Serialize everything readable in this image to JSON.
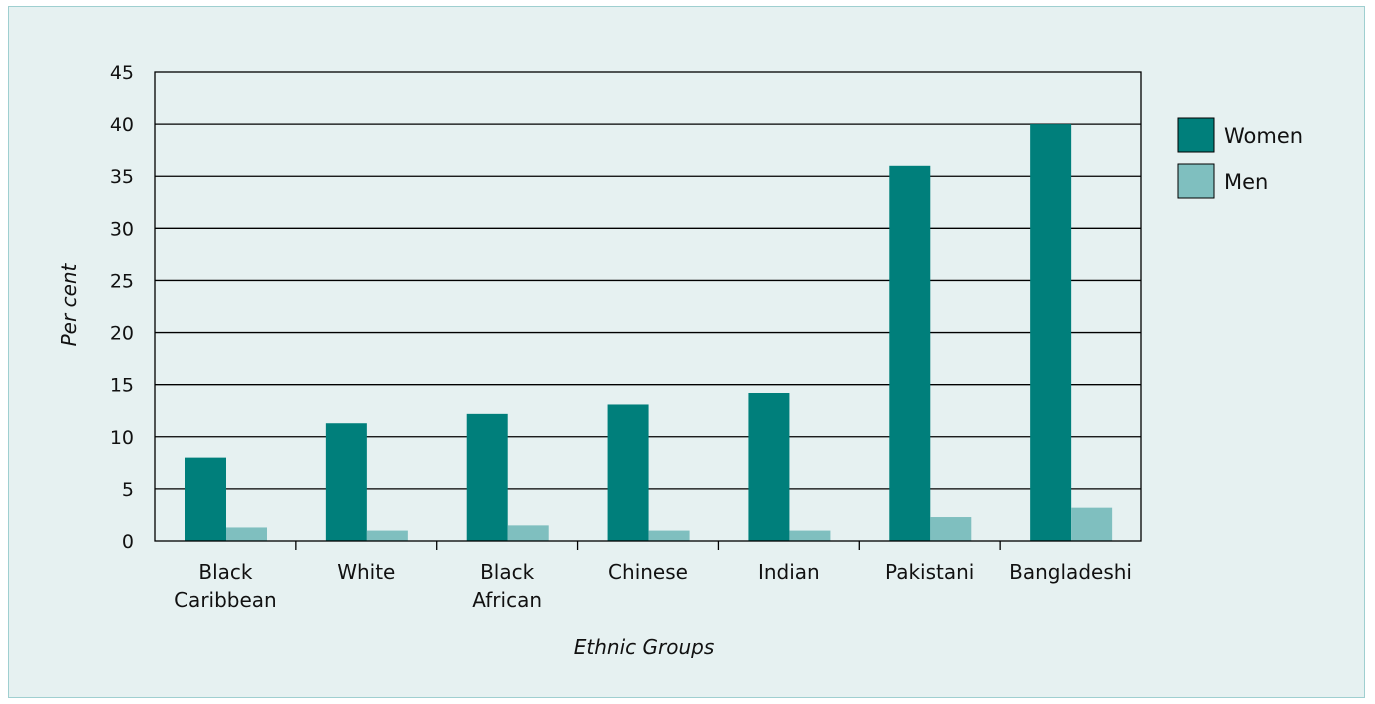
{
  "chart_data": {
    "type": "bar",
    "title": "",
    "xlabel": "Ethnic Groups",
    "ylabel": "Per cent",
    "ylim": [
      0,
      45
    ],
    "yticks": [
      0,
      5,
      10,
      15,
      20,
      25,
      30,
      35,
      40,
      45
    ],
    "grid": true,
    "legend_position": "right",
    "categories": [
      [
        "Black",
        "Caribbean"
      ],
      [
        "White"
      ],
      [
        "Black",
        "African"
      ],
      [
        "Chinese"
      ],
      [
        "Indian"
      ],
      [
        "Pakistani"
      ],
      [
        "Bangladeshi"
      ]
    ],
    "series": [
      {
        "name": "Women",
        "color": "#007f7b",
        "values": [
          8.0,
          11.3,
          12.2,
          13.1,
          14.2,
          36.0,
          40.0
        ]
      },
      {
        "name": "Men",
        "color": "#7fbfbf",
        "values": [
          1.3,
          1.0,
          1.5,
          1.0,
          1.0,
          2.3,
          3.2
        ]
      }
    ]
  },
  "colors": {
    "panel_bg": "#e6f1f1",
    "panel_border": "#9fcfd0",
    "gridline": "#000000"
  }
}
